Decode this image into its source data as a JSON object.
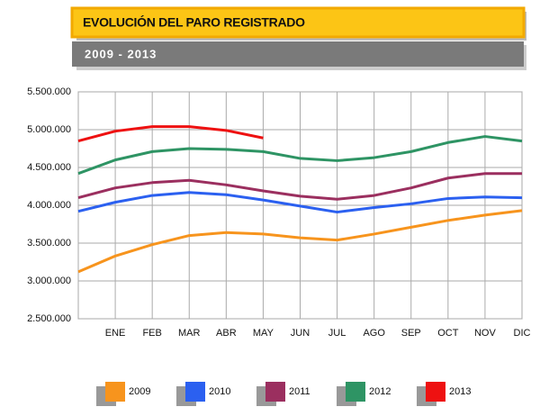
{
  "chart_data": {
    "type": "line",
    "title": "EVOLUCIÓN DEL PARO REGISTRADO",
    "subtitle": "2009 - 2013",
    "categories": [
      null,
      "ENE",
      "FEB",
      "MAR",
      "ABR",
      "MAY",
      "JUN",
      "JUL",
      "AGO",
      "SEP",
      "OCT",
      "NOV",
      "DIC"
    ],
    "series": [
      {
        "name": "2009",
        "color": "#f7941d",
        "values": [
          3120000,
          3330000,
          3480000,
          3600000,
          3640000,
          3620000,
          3570000,
          3540000,
          3620000,
          3710000,
          3800000,
          3870000,
          3930000
        ]
      },
      {
        "name": "2010",
        "color": "#2b60f0",
        "values": [
          3920000,
          4040000,
          4130000,
          4170000,
          4140000,
          4070000,
          3990000,
          3910000,
          3970000,
          4020000,
          4090000,
          4110000,
          4100000
        ]
      },
      {
        "name": "2011",
        "color": "#9b2f5f",
        "values": [
          4100000,
          4230000,
          4300000,
          4330000,
          4270000,
          4190000,
          4120000,
          4080000,
          4130000,
          4230000,
          4360000,
          4420000,
          4420000
        ]
      },
      {
        "name": "2012",
        "color": "#2e9464",
        "values": [
          4420000,
          4600000,
          4710000,
          4750000,
          4740000,
          4710000,
          4620000,
          4590000,
          4630000,
          4710000,
          4830000,
          4910000,
          4850000
        ]
      },
      {
        "name": "2013",
        "color": "#ee1111",
        "values": [
          4850000,
          4980000,
          5040000,
          5040000,
          4990000,
          4890000,
          null,
          null,
          null,
          null,
          null,
          null,
          null
        ]
      }
    ],
    "ylim": [
      2500000,
      5500000
    ],
    "yticks": [
      {
        "value": 2500000,
        "label": "2.500.000"
      },
      {
        "value": 3000000,
        "label": "3.000.000"
      },
      {
        "value": 3500000,
        "label": "3.500.000"
      },
      {
        "value": 4000000,
        "label": "4.000.000"
      },
      {
        "value": 4500000,
        "label": "4.500.000"
      },
      {
        "value": 5000000,
        "label": "5.000.000"
      },
      {
        "value": 5500000,
        "label": "5.500.000"
      }
    ],
    "grid": true,
    "legend": "bottom"
  }
}
